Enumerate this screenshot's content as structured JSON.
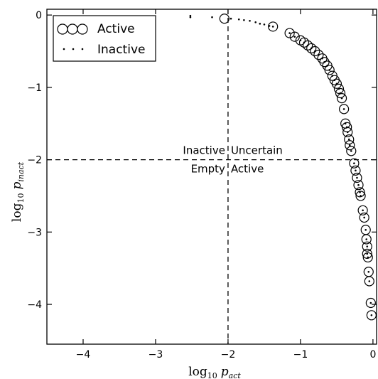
{
  "chart_data": {
    "type": "scatter",
    "xlabel": "log10 p_act",
    "ylabel": "log10 p_inact",
    "xlim": [
      -4.5,
      0.05
    ],
    "ylim": [
      -4.55,
      0.08
    ],
    "x_ticks": [
      "−4",
      "−3",
      "−2",
      "−1",
      "0"
    ],
    "y_ticks": [
      "0",
      "−1",
      "−2",
      "−3",
      "−4"
    ],
    "reference_lines": {
      "x": -2,
      "y": -2,
      "style": "dashed"
    },
    "region_labels": {
      "top_left": "Inactive",
      "top_right": "Uncertain",
      "bottom_left": "Empty",
      "bottom_right": "Active"
    },
    "legend": {
      "position": "top-left",
      "entries": [
        "Active",
        "Inactive"
      ]
    },
    "series": [
      {
        "name": "Active",
        "marker": "open-circle",
        "points": [
          [
            -2.05,
            -0.05
          ],
          [
            -1.38,
            -0.16
          ],
          [
            -1.15,
            -0.25
          ],
          [
            -1.08,
            -0.3
          ],
          [
            -1.0,
            -0.35
          ],
          [
            -0.95,
            -0.38
          ],
          [
            -0.9,
            -0.42
          ],
          [
            -0.85,
            -0.46
          ],
          [
            -0.8,
            -0.5
          ],
          [
            -0.75,
            -0.55
          ],
          [
            -0.7,
            -0.6
          ],
          [
            -0.67,
            -0.65
          ],
          [
            -0.63,
            -0.7
          ],
          [
            -0.6,
            -0.76
          ],
          [
            -0.56,
            -0.84
          ],
          [
            -0.53,
            -0.9
          ],
          [
            -0.5,
            -0.95
          ],
          [
            -0.47,
            -1.02
          ],
          [
            -0.45,
            -1.08
          ],
          [
            -0.43,
            -1.15
          ],
          [
            -0.4,
            -1.3
          ],
          [
            -0.38,
            -1.5
          ],
          [
            -0.36,
            -1.55
          ],
          [
            -0.35,
            -1.62
          ],
          [
            -0.33,
            -1.72
          ],
          [
            -0.32,
            -1.8
          ],
          [
            -0.3,
            -1.88
          ],
          [
            -0.26,
            -2.05
          ],
          [
            -0.24,
            -2.15
          ],
          [
            -0.22,
            -2.25
          ],
          [
            -0.2,
            -2.35
          ],
          [
            -0.18,
            -2.45
          ],
          [
            -0.17,
            -2.5
          ],
          [
            -0.14,
            -2.7
          ],
          [
            -0.12,
            -2.8
          ],
          [
            -0.1,
            -2.97
          ],
          [
            -0.09,
            -3.1
          ],
          [
            -0.08,
            -3.2
          ],
          [
            -0.08,
            -3.3
          ],
          [
            -0.07,
            -3.35
          ],
          [
            -0.06,
            -3.55
          ],
          [
            -0.05,
            -3.68
          ],
          [
            -0.03,
            -3.98
          ],
          [
            -0.02,
            -4.15
          ]
        ]
      },
      {
        "name": "Inactive",
        "marker": "dot",
        "points": [
          [
            -2.52,
            -0.01
          ],
          [
            -2.52,
            -0.03
          ],
          [
            -2.22,
            -0.03
          ],
          [
            -1.96,
            -0.05
          ],
          [
            -1.85,
            -0.06
          ],
          [
            -1.78,
            -0.07
          ],
          [
            -1.7,
            -0.08
          ],
          [
            -1.62,
            -0.1
          ],
          [
            -1.56,
            -0.12
          ],
          [
            -1.5,
            -0.13
          ],
          [
            -1.43,
            -0.15
          ],
          [
            -1.38,
            -0.16
          ],
          [
            -1.15,
            -0.25
          ],
          [
            -1.08,
            -0.3
          ],
          [
            -1.0,
            -0.35
          ],
          [
            -0.95,
            -0.38
          ],
          [
            -0.9,
            -0.42
          ],
          [
            -0.85,
            -0.46
          ],
          [
            -0.8,
            -0.5
          ],
          [
            -0.75,
            -0.55
          ],
          [
            -0.7,
            -0.6
          ],
          [
            -0.67,
            -0.65
          ],
          [
            -0.63,
            -0.7
          ],
          [
            -0.6,
            -0.76
          ],
          [
            -0.56,
            -0.84
          ],
          [
            -0.53,
            -0.9
          ],
          [
            -0.5,
            -0.95
          ],
          [
            -0.47,
            -1.02
          ],
          [
            -0.45,
            -1.08
          ],
          [
            -0.43,
            -1.15
          ],
          [
            -0.4,
            -1.3
          ],
          [
            -0.38,
            -1.5
          ],
          [
            -0.36,
            -1.55
          ],
          [
            -0.35,
            -1.62
          ],
          [
            -0.33,
            -1.72
          ],
          [
            -0.32,
            -1.8
          ],
          [
            -0.3,
            -1.88
          ],
          [
            -0.26,
            -2.05
          ],
          [
            -0.24,
            -2.15
          ],
          [
            -0.22,
            -2.25
          ],
          [
            -0.2,
            -2.35
          ],
          [
            -0.18,
            -2.45
          ],
          [
            -0.17,
            -2.5
          ],
          [
            -0.14,
            -2.7
          ],
          [
            -0.12,
            -2.8
          ],
          [
            -0.1,
            -2.97
          ],
          [
            -0.09,
            -3.1
          ],
          [
            -0.08,
            -3.2
          ],
          [
            -0.08,
            -3.3
          ],
          [
            -0.07,
            -3.35
          ],
          [
            -0.06,
            -3.55
          ],
          [
            -0.05,
            -3.68
          ],
          [
            -0.03,
            -3.98
          ],
          [
            -0.02,
            -4.15
          ]
        ]
      }
    ]
  },
  "axis_titles": {
    "x_base": "log",
    "x_sub": "10",
    "x_var": "p",
    "x_var_sub": "act",
    "y_base": "log",
    "y_sub": "10",
    "y_var": "p",
    "y_var_sub": "inact"
  }
}
